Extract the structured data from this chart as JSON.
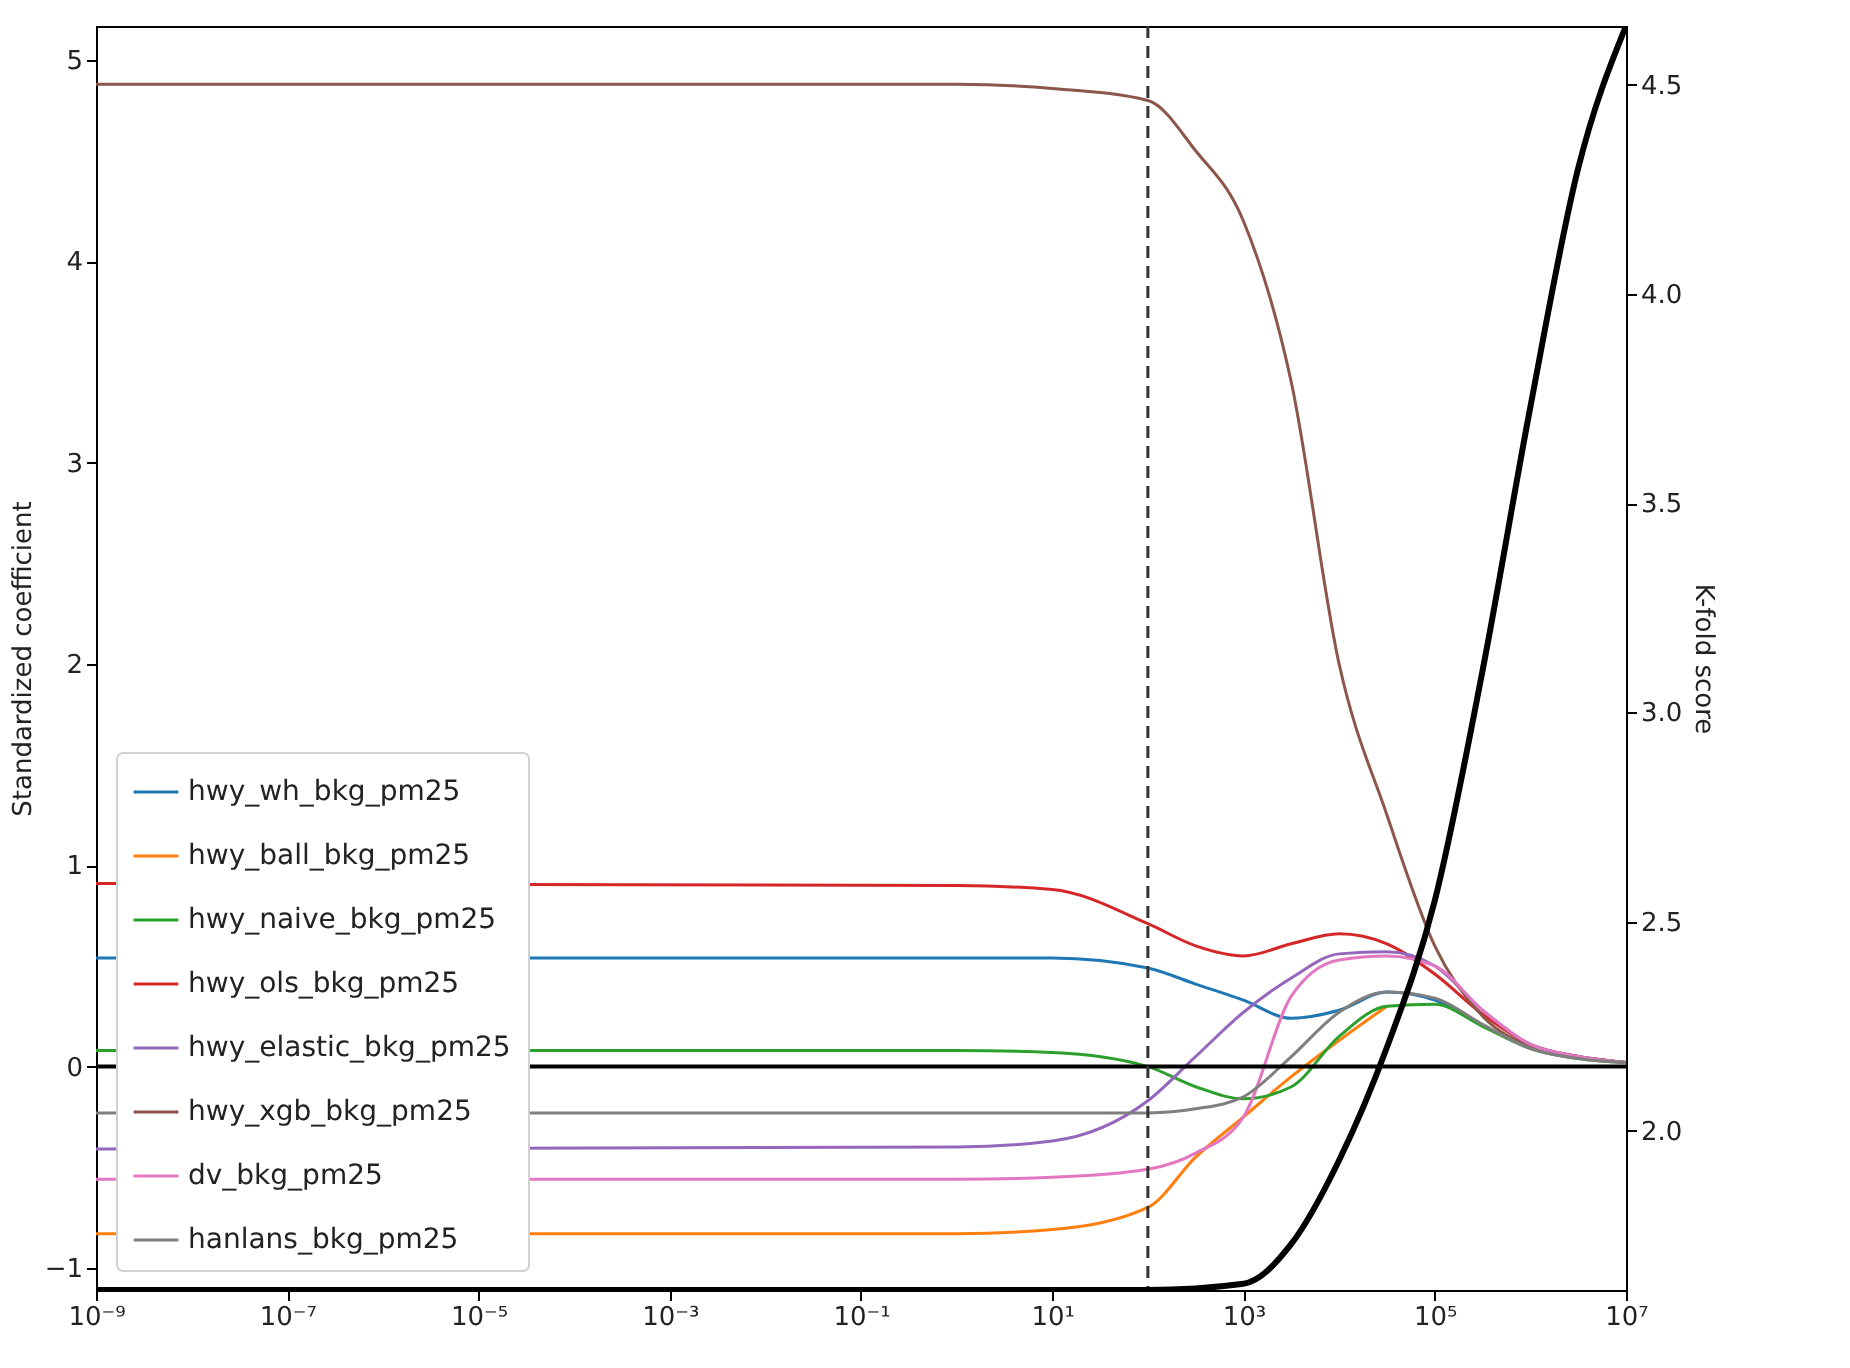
{
  "chart_data": {
    "type": "line",
    "ylabel": "Standardized coefficient",
    "y2label": "K-fold score",
    "x": [
      1e-09,
      1,
      10,
      100,
      316,
      1000,
      3162,
      10000,
      31623,
      100000,
      316228,
      1000000,
      3162278,
      10000000
    ],
    "xlim": [
      1e-09,
      10000000
    ],
    "xticks": [
      {
        "value": 1e-09,
        "label": "10⁻⁹"
      },
      {
        "value": 1e-07,
        "label": "10⁻⁷"
      },
      {
        "value": 1e-05,
        "label": "10⁻⁵"
      },
      {
        "value": 0.001,
        "label": "10⁻³"
      },
      {
        "value": 0.1,
        "label": "10⁻¹"
      },
      {
        "value": 10,
        "label": "10¹"
      },
      {
        "value": 1000,
        "label": "10³"
      },
      {
        "value": 100000,
        "label": "10⁵"
      },
      {
        "value": 10000000,
        "label": "10⁷"
      }
    ],
    "log": "x",
    "ylim": [
      -1.11,
      5.17
    ],
    "yticks": [
      {
        "value": -1,
        "label": "−1"
      },
      0,
      1,
      2,
      3,
      4,
      5
    ],
    "y2lim": [
      1.62,
      4.64
    ],
    "y2ticks": [
      {
        "value": 2,
        "label": "2.0"
      },
      2.5,
      {
        "value": 3,
        "label": "3.0"
      },
      3.5,
      {
        "value": 4,
        "label": "4.0"
      },
      4.5
    ],
    "series": [
      {
        "name": "hwy_wh_bkg_pm25",
        "color": "#1f77b4",
        "values": [
          0.54,
          0.54,
          0.54,
          0.49,
          0.41,
          0.33,
          0.24,
          0.28,
          0.37,
          0.33,
          0.2,
          null,
          null,
          null
        ]
      },
      {
        "name": "hwy_ball_bkg_pm25",
        "color": "#ff7f0e",
        "values": [
          -0.83,
          -0.83,
          -0.81,
          -0.7,
          -0.45,
          -0.25,
          -0.05,
          0.13,
          0.3,
          null,
          null,
          null,
          null,
          null
        ]
      },
      {
        "name": "hwy_naive_bkg_pm25",
        "color": "#2ca02c",
        "values": [
          0.08,
          0.08,
          0.07,
          0,
          -0.1,
          -0.16,
          -0.1,
          0.15,
          0.3,
          0.31,
          0.2,
          0.09,
          0.04,
          0.02
        ]
      },
      {
        "name": "hwy_ols_bkg_pm25",
        "color": "#d62728",
        "values": [
          0.91,
          0.9,
          0.88,
          0.71,
          0.6,
          0.55,
          0.61,
          0.66,
          0.61,
          0.46,
          0.26,
          0.11,
          0.05,
          0.02
        ]
      },
      {
        "name": "hwy_elastic_bkg_pm25",
        "color": "#9467bd",
        "values": [
          -0.41,
          -0.4,
          -0.37,
          -0.17,
          0.05,
          0.27,
          0.44,
          0.56,
          0.57,
          0.5,
          0.28,
          0.11,
          0.05,
          0.02
        ]
      },
      {
        "name": "hwy_xgb_bkg_pm25",
        "color": "#8c564b",
        "values": [
          4.88,
          4.88,
          4.86,
          4.8,
          4.55,
          4.2,
          3.4,
          2.0,
          1.25,
          0.6,
          0.25,
          0.1,
          0.05,
          0.02
        ]
      },
      {
        "name": "dv_bkg_pm25",
        "color": "#e377c2",
        "values": [
          -0.56,
          -0.56,
          -0.55,
          -0.51,
          -0.43,
          -0.25,
          0.35,
          0.53,
          0.55,
          0.5,
          0.28,
          0.11,
          0.05,
          0.02
        ]
      },
      {
        "name": "hanlans_bkg_pm25",
        "color": "#7f7f7f",
        "values": [
          -0.23,
          -0.23,
          -0.23,
          -0.23,
          -0.21,
          -0.15,
          0.05,
          0.27,
          0.37,
          0.34,
          0.21,
          0.09,
          0.04,
          0.02
        ]
      },
      {
        "axis": "y2",
        "color": "#000000",
        "x": [
          1e-09,
          1,
          100,
          1000,
          3162,
          10000,
          31623,
          100000,
          316228,
          1000000,
          3162278,
          10000000
        ],
        "values": [
          1.62,
          1.62,
          1.62,
          1.635,
          1.73,
          1.93,
          2.2,
          2.55,
          3.1,
          3.73,
          4.3,
          4.64
        ]
      }
    ],
    "ref_lines": [
      {
        "axis": "y",
        "value": 0,
        "color": "#000000"
      },
      {
        "axis": "x",
        "value": 100,
        "color": "#333333",
        "line_style": "dashed"
      }
    ],
    "legend": "bottom left",
    "grid": false,
    "marker": "none",
    "line_style": "solid"
  }
}
